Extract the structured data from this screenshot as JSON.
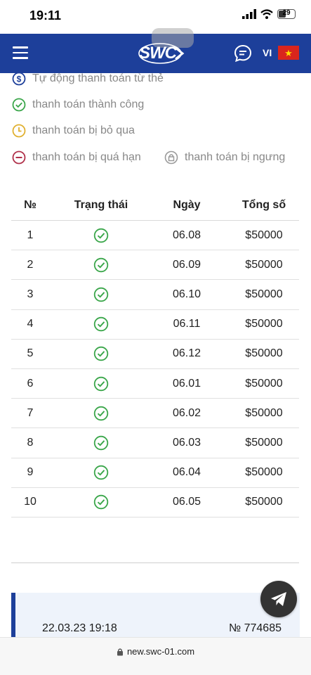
{
  "status_bar": {
    "time": "19:11",
    "battery": "29"
  },
  "header": {
    "logo": "SWC",
    "lang": "VI"
  },
  "legend": {
    "auto_payment": "Tự động thanh toán từ thẻ",
    "success": "thanh toán thành công",
    "skipped": "thanh toán bị bỏ qua",
    "overdue": "thanh toán bị quá hạn",
    "stopped": "thanh toán bị ngưng"
  },
  "table": {
    "headers": {
      "no": "№",
      "status": "Trạng thái",
      "date": "Ngày",
      "total": "Tổng số"
    },
    "rows": [
      {
        "no": "1",
        "status": "success",
        "date": "06.08",
        "total": "$50000"
      },
      {
        "no": "2",
        "status": "success",
        "date": "06.09",
        "total": "$50000"
      },
      {
        "no": "3",
        "status": "success",
        "date": "06.10",
        "total": "$50000"
      },
      {
        "no": "4",
        "status": "success",
        "date": "06.11",
        "total": "$50000"
      },
      {
        "no": "5",
        "status": "success",
        "date": "06.12",
        "total": "$50000"
      },
      {
        "no": "6",
        "status": "success",
        "date": "06.01",
        "total": "$50000"
      },
      {
        "no": "7",
        "status": "success",
        "date": "06.02",
        "total": "$50000"
      },
      {
        "no": "8",
        "status": "success",
        "date": "06.03",
        "total": "$50000"
      },
      {
        "no": "9",
        "status": "success",
        "date": "06.04",
        "total": "$50000"
      },
      {
        "no": "10",
        "status": "success",
        "date": "06.05",
        "total": "$50000"
      }
    ]
  },
  "card": {
    "datetime": "22.03.23 19:18",
    "number": "№ 774685"
  },
  "url_bar": {
    "url": "new.swc-01.com"
  },
  "colors": {
    "header_bg": "#1d3f9a",
    "success": "#3aa64a",
    "skipped": "#e0b030",
    "overdue": "#b0304a",
    "stopped": "#9a9a9a",
    "auto": "#1d3f9a"
  },
  "icons": {
    "menu": "hamburger-icon",
    "chat": "chat-icon",
    "flag": "vietnam-flag-icon",
    "telegram": "telegram-icon",
    "lock": "lock-icon"
  }
}
